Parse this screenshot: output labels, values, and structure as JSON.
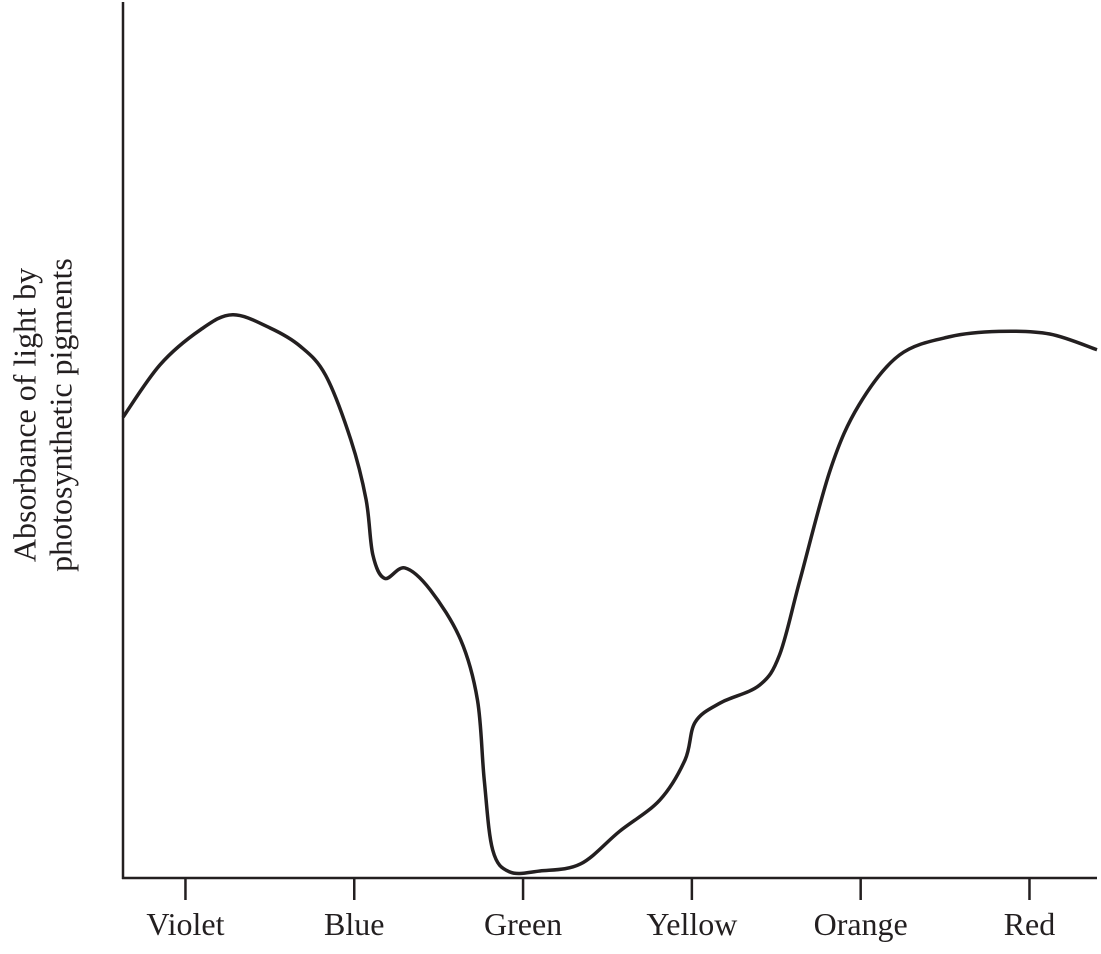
{
  "chart_data": {
    "type": "line",
    "y_label": [
      "Absorbance of light by",
      "photosynthetic pigments"
    ],
    "xlim": [
      -0.37,
      5.4
    ],
    "ylim": [
      0,
      100
    ],
    "xticks": [
      {
        "value": 0,
        "label": "Violet"
      },
      {
        "value": 1,
        "label": "Blue"
      },
      {
        "value": 2,
        "label": "Green"
      },
      {
        "value": 3,
        "label": "Yellow"
      },
      {
        "value": 4,
        "label": "Orange"
      },
      {
        "value": 5,
        "label": "Red"
      }
    ],
    "grid": false,
    "series": [
      {
        "color": "#231f20",
        "x": [
          -0.37,
          -0.15,
          0.09,
          0.28,
          0.5,
          0.68,
          0.83,
          0.98,
          1.07,
          1.11,
          1.18,
          1.3,
          1.45,
          1.63,
          1.73,
          1.77,
          1.82,
          1.92,
          2.1,
          2.34,
          2.57,
          2.81,
          2.96,
          3.02,
          3.17,
          3.4,
          3.52,
          3.64,
          3.82,
          3.99,
          4.23,
          4.53,
          4.82,
          5.12,
          5.4
        ],
        "values": [
          52.6,
          58.6,
          62.6,
          64.3,
          62.8,
          60.7,
          57.4,
          50,
          43.2,
          36.9,
          34.2,
          35.4,
          32.9,
          27.2,
          20.3,
          11.2,
          3.2,
          0.7,
          0.8,
          1.6,
          5.3,
          8.9,
          13.5,
          17.8,
          20,
          22,
          25.5,
          34,
          46.6,
          54,
          59.7,
          61.8,
          62.4,
          62.1,
          60.3
        ]
      }
    ]
  }
}
